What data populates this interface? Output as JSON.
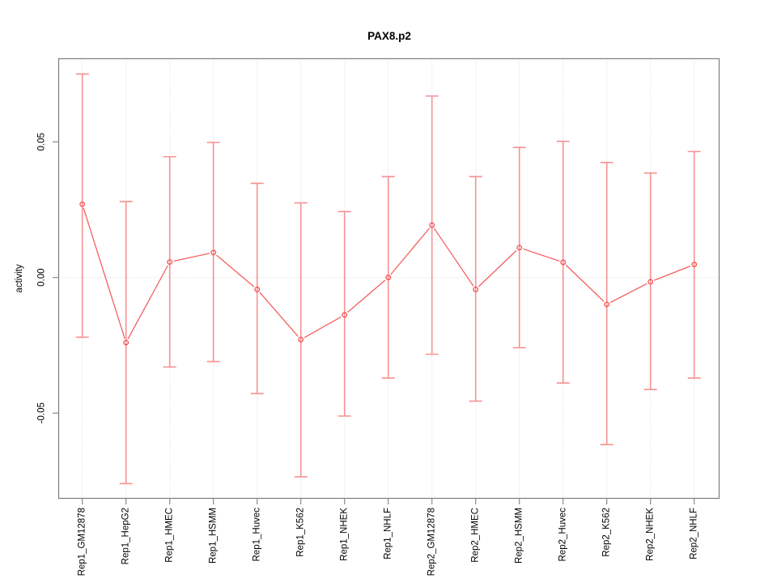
{
  "chart_data": {
    "type": "line",
    "title": "PAX8.p2",
    "xlabel": "",
    "ylabel": "activity",
    "point_style": "open-circle",
    "error_bars": true,
    "grid": {
      "vertical_dotted_per_category": true,
      "horizontal_dotted_at_zero": true
    },
    "legend": null,
    "ylim": [
      -0.082,
      0.081
    ],
    "yticks": [
      0.05,
      0.0,
      -0.05
    ],
    "ytick_labels": [
      "0.05",
      "0.00",
      "-0.05"
    ],
    "categories": [
      "Rep1_GM12878",
      "Rep1_HepG2",
      "Rep1_HMEC",
      "Rep1_HSMM",
      "Rep1_Huvec",
      "Rep1_K562",
      "Rep1_NHEK",
      "Rep1_NHLF",
      "Rep2_GM12878",
      "Rep2_HMEC",
      "Rep2_HSMM",
      "Rep2_Huvec",
      "Rep2_K562",
      "Rep2_NHEK",
      "Rep2_NHLF"
    ],
    "series": [
      {
        "name": "activity",
        "values": [
          0.027,
          -0.024,
          0.0057,
          0.0092,
          -0.0044,
          -0.0229,
          -0.0138,
          0.0,
          0.0193,
          -0.0044,
          0.011,
          0.0056,
          -0.0099,
          -0.0016,
          0.0048
        ],
        "error_high": [
          0.075,
          0.028,
          0.0445,
          0.0498,
          0.0347,
          0.0275,
          0.0243,
          0.0372,
          0.0669,
          0.0372,
          0.0479,
          0.0502,
          0.0424,
          0.0385,
          0.0464
        ],
        "error_low": [
          -0.022,
          -0.076,
          -0.033,
          -0.031,
          -0.0428,
          -0.0735,
          -0.0511,
          -0.0371,
          -0.0283,
          -0.0456,
          -0.0259,
          -0.0389,
          -0.0616,
          -0.0413,
          -0.0371
        ]
      }
    ],
    "colors": {
      "line": "#f55f5f",
      "error_bar": "#f79191",
      "point": "#f34b4b",
      "grid": "#d9d9d9",
      "box": "#7d7d7d",
      "tick": "#8a8a8a",
      "text": "#000000"
    }
  }
}
